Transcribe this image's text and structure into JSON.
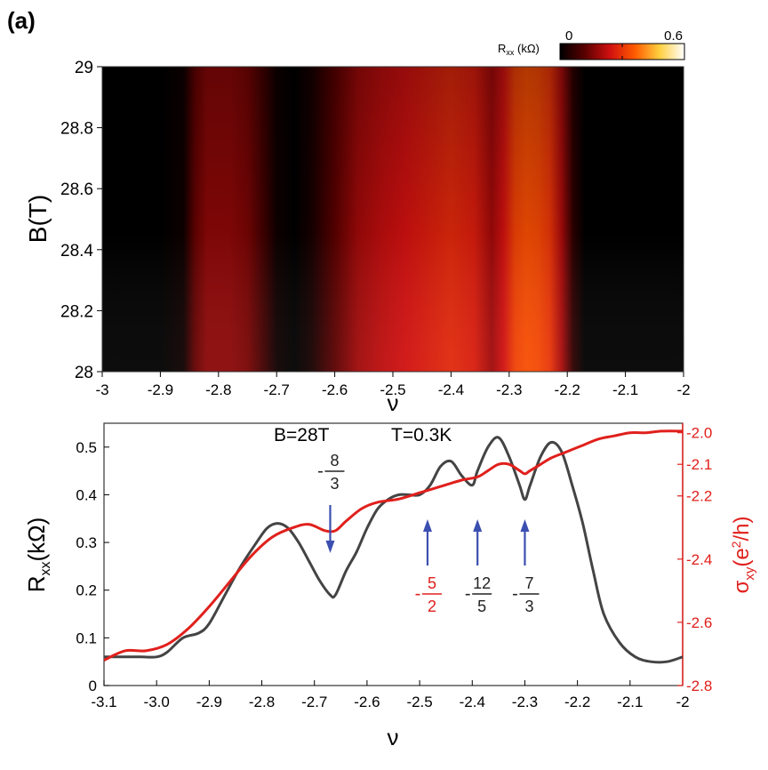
{
  "panel_label": "(a)",
  "colorbar": {
    "label": "R",
    "label_sub": "xx",
    "label_unit": " (kΩ)",
    "min_label": "0",
    "max_label": "0.6",
    "stops": [
      "#000000",
      "#5a0000",
      "#d01010",
      "#ff5a00",
      "#ffd040",
      "#ffffff"
    ]
  },
  "chart_data": [
    {
      "type": "heatmap",
      "xlabel": "ν",
      "ylabel": "B(T)",
      "xlim": [
        -3,
        -2
      ],
      "ylim": [
        28,
        29
      ],
      "x_ticks": [
        "-3",
        "-2.9",
        "-2.8",
        "-2.7",
        "-2.6",
        "-2.5",
        "-2.4",
        "-2.3",
        "-2.2",
        "-2.1",
        "-2"
      ],
      "x_tick_values": [
        -3,
        -2.9,
        -2.8,
        -2.7,
        -2.6,
        -2.5,
        -2.4,
        -2.3,
        -2.2,
        -2.1,
        -2
      ],
      "y_ticks": [
        "28",
        "28.2",
        "28.4",
        "28.6",
        "28.8",
        "29"
      ],
      "y_tick_values": [
        28,
        28.2,
        28.4,
        28.6,
        28.8,
        29
      ],
      "profile_nu": [
        -3.0,
        -2.9,
        -2.86,
        -2.84,
        -2.82,
        -2.78,
        -2.75,
        -2.72,
        -2.7,
        -2.67,
        -2.64,
        -2.6,
        -2.56,
        -2.52,
        -2.48,
        -2.44,
        -2.4,
        -2.36,
        -2.33,
        -2.31,
        -2.29,
        -2.27,
        -2.25,
        -2.23,
        -2.21,
        -2.19,
        -2.17,
        -2.0
      ],
      "profile_r": [
        0.0,
        0.0,
        0.02,
        0.13,
        0.17,
        0.17,
        0.15,
        0.08,
        0.02,
        0.0,
        0.03,
        0.12,
        0.19,
        0.22,
        0.24,
        0.26,
        0.28,
        0.26,
        0.19,
        0.24,
        0.32,
        0.34,
        0.33,
        0.3,
        0.2,
        0.06,
        0.0,
        0.0
      ]
    },
    {
      "type": "line",
      "annotation_B": "B=28T",
      "annotation_T": "T=0.3K",
      "xlabel": "ν",
      "ylabel_left": "R",
      "ylabel_left_sub": "xx",
      "ylabel_left_unit": "(kΩ)",
      "ylabel_right": "σ",
      "ylabel_right_sub": "xy",
      "ylabel_right_unit_a": "(e",
      "ylabel_right_unit_sup": "2",
      "ylabel_right_unit_b": "/h)",
      "xlim": [
        -3.1,
        -2.0
      ],
      "ylim_left": [
        0,
        0.55
      ],
      "ylim_right": [
        -2.8,
        -1.97
      ],
      "x_ticks": [
        "-3.1",
        "-3.0",
        "-2.9",
        "-2.8",
        "-2.7",
        "-2.6",
        "-2.5",
        "-2.4",
        "-2.3",
        "-2.2",
        "-2.1",
        "-2"
      ],
      "x_tick_values": [
        -3.1,
        -3.0,
        -2.9,
        -2.8,
        -2.7,
        -2.6,
        -2.5,
        -2.4,
        -2.3,
        -2.2,
        -2.1,
        -2.0
      ],
      "y_left_ticks": [
        "0",
        "0.1",
        "0.2",
        "0.3",
        "0.4",
        "0.5"
      ],
      "y_left_tick_values": [
        0,
        0.1,
        0.2,
        0.3,
        0.4,
        0.5
      ],
      "y_right_ticks": [
        "-2.0",
        "-2.1",
        "-2.2",
        "-2.4",
        "-2.6",
        "-2.8"
      ],
      "y_right_tick_values": [
        -2.0,
        -2.1,
        -2.2,
        -2.4,
        -2.6,
        -2.8
      ],
      "colors": {
        "rxx": "#444444",
        "sigma": "#e0201c",
        "arrow": "#3b4fb0"
      },
      "series": [
        {
          "name": "R_xx",
          "axis": "left",
          "x": [
            -3.1,
            -3.06,
            -3.03,
            -3.0,
            -2.98,
            -2.95,
            -2.92,
            -2.9,
            -2.87,
            -2.84,
            -2.81,
            -2.79,
            -2.77,
            -2.75,
            -2.73,
            -2.71,
            -2.69,
            -2.67,
            -2.66,
            -2.64,
            -2.62,
            -2.6,
            -2.58,
            -2.56,
            -2.54,
            -2.52,
            -2.5,
            -2.48,
            -2.46,
            -2.44,
            -2.42,
            -2.4,
            -2.39,
            -2.37,
            -2.35,
            -2.33,
            -2.31,
            -2.3,
            -2.29,
            -2.27,
            -2.25,
            -2.23,
            -2.21,
            -2.19,
            -2.17,
            -2.15,
            -2.12,
            -2.09,
            -2.06,
            -2.03,
            -2.0
          ],
          "y": [
            0.06,
            0.06,
            0.06,
            0.06,
            0.07,
            0.1,
            0.11,
            0.13,
            0.19,
            0.25,
            0.3,
            0.33,
            0.34,
            0.33,
            0.3,
            0.26,
            0.22,
            0.19,
            0.19,
            0.24,
            0.28,
            0.33,
            0.37,
            0.39,
            0.4,
            0.4,
            0.4,
            0.42,
            0.46,
            0.47,
            0.44,
            0.42,
            0.45,
            0.5,
            0.52,
            0.48,
            0.42,
            0.39,
            0.42,
            0.48,
            0.51,
            0.49,
            0.42,
            0.34,
            0.24,
            0.15,
            0.09,
            0.06,
            0.05,
            0.05,
            0.06
          ]
        },
        {
          "name": "σ_xy",
          "axis": "right",
          "x": [
            -3.1,
            -3.06,
            -3.02,
            -2.98,
            -2.94,
            -2.9,
            -2.86,
            -2.82,
            -2.78,
            -2.74,
            -2.71,
            -2.68,
            -2.66,
            -2.64,
            -2.61,
            -2.58,
            -2.54,
            -2.5,
            -2.46,
            -2.42,
            -2.39,
            -2.37,
            -2.35,
            -2.33,
            -2.31,
            -2.3,
            -2.29,
            -2.27,
            -2.25,
            -2.22,
            -2.19,
            -2.16,
            -2.13,
            -2.1,
            -2.07,
            -2.04,
            -2.0
          ],
          "y": [
            -2.72,
            -2.69,
            -2.69,
            -2.67,
            -2.62,
            -2.55,
            -2.47,
            -2.39,
            -2.33,
            -2.3,
            -2.29,
            -2.31,
            -2.31,
            -2.28,
            -2.24,
            -2.22,
            -2.21,
            -2.19,
            -2.17,
            -2.15,
            -2.14,
            -2.12,
            -2.1,
            -2.1,
            -2.12,
            -2.13,
            -2.12,
            -2.1,
            -2.08,
            -2.06,
            -2.04,
            -2.02,
            -2.01,
            -2.0,
            -2.0,
            -1.995,
            -1.995
          ]
        }
      ],
      "fraction_labels": [
        {
          "sign": "-",
          "num": "8",
          "den": "3",
          "x": -2.67,
          "color": "#222222",
          "placement": "above",
          "arrow": "down"
        },
        {
          "sign": "-",
          "num": "5",
          "den": "2",
          "x": -2.485,
          "color": "#e0201c",
          "placement": "below",
          "arrow": "up"
        },
        {
          "sign": "-",
          "num": "12",
          "den": "5",
          "x": -2.39,
          "color": "#222222",
          "placement": "below",
          "arrow": "up"
        },
        {
          "sign": "-",
          "num": "7",
          "den": "3",
          "x": -2.3,
          "color": "#222222",
          "placement": "below",
          "arrow": "up"
        }
      ]
    }
  ]
}
